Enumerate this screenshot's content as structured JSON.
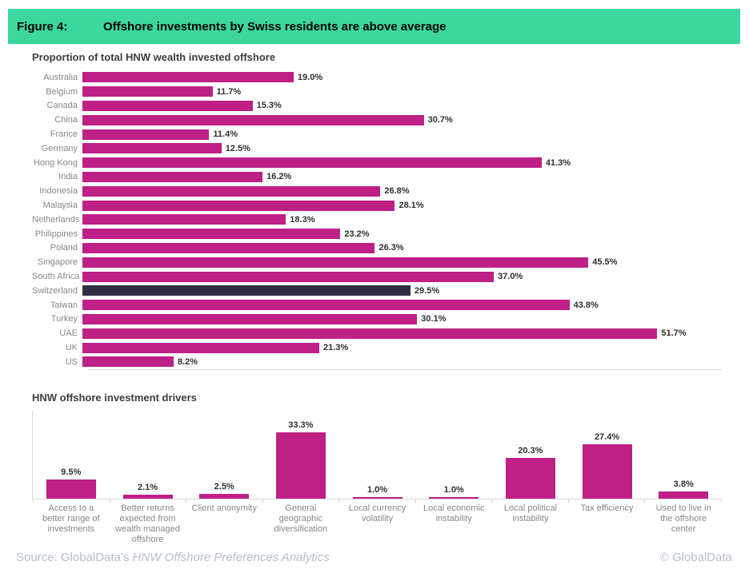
{
  "header": {
    "figure_label": "Figure 4:",
    "title": "Offshore investments by Swiss residents are above average",
    "band_color": "#3bd79d"
  },
  "chart_data": [
    {
      "type": "bar",
      "orientation": "horizontal",
      "title": "Proportion of total HNW wealth invested offshore",
      "categories": [
        "Australia",
        "Belgium",
        "Canada",
        "China",
        "France",
        "Germany",
        "Hong Kong",
        "India",
        "Indonesia",
        "Malaysia",
        "Netherlands",
        "Philippines",
        "Poland",
        "Singapore",
        "South Africa",
        "Switzerland",
        "Taiwan",
        "Turkey",
        "UAE",
        "UK",
        "US"
      ],
      "values": [
        19.0,
        11.7,
        15.3,
        30.7,
        11.4,
        12.5,
        41.3,
        16.2,
        26.8,
        28.1,
        18.3,
        23.2,
        26.3,
        45.5,
        37.0,
        29.5,
        43.8,
        30.1,
        51.7,
        21.3,
        8.2
      ],
      "value_label_format": "percent_one_decimal",
      "highlight_category": "Switzerland",
      "bar_color": "#be2086",
      "highlight_color": "#332e42",
      "xlim": [
        0,
        57.5
      ],
      "grid": false,
      "legend": "none"
    },
    {
      "type": "bar",
      "orientation": "vertical",
      "title": "HNW offshore investment drivers",
      "categories": [
        "Access to a better range of investments",
        "Better returns expected from wealth managed offshore",
        "Client anonymity",
        "General geographic diversification",
        "Local currency volatility",
        "Local economic instability",
        "Local political instability",
        "Tax efficiency",
        "Used to live in the offshore center"
      ],
      "values": [
        9.5,
        2.1,
        2.5,
        33.3,
        1.0,
        1.0,
        20.3,
        27.4,
        3.8
      ],
      "value_label_format": "percent_one_decimal",
      "bar_color": "#be2086",
      "ylim": [
        0,
        44.5
      ],
      "grid": false,
      "legend": "none"
    }
  ],
  "footer": {
    "source_prefix": "Source: GlobalData’s ",
    "source_title": "HNW Offshore Preferences Analytics",
    "copyright": "© GlobalData"
  }
}
